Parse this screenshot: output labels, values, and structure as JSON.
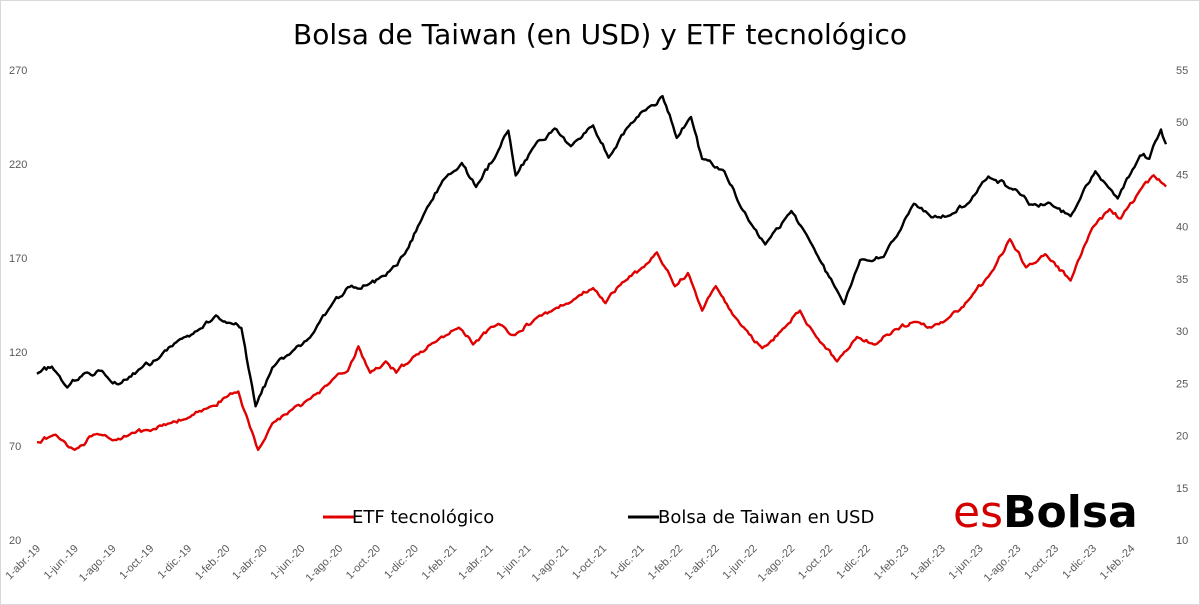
{
  "chart_data": {
    "type": "line",
    "title": "Bolsa de Taiwan (en USD) y ETF tecnológico",
    "x_tick_labels": [
      "1-abr.-19",
      "1-jun.-19",
      "1-ago.-19",
      "1-oct.-19",
      "1-dic.-19",
      "1-feb.-20",
      "1-abr.-20",
      "1-jun.-20",
      "1-ago.-20",
      "1-oct.-20",
      "1-dic.-20",
      "1-feb.-21",
      "1-abr.-21",
      "1-jun.-21",
      "1-ago.-21",
      "1-oct.-21",
      "1-dic.-21",
      "1-feb.-22",
      "1-abr.-22",
      "1-jun.-22",
      "1-ago.-22",
      "1-oct.-22",
      "1-dic.-22",
      "1-feb.-23",
      "1-abr.-23",
      "1-jun.-23",
      "1-ago.-23",
      "1-oct.-23",
      "1-dic.-23",
      "1-feb.-24"
    ],
    "x_range": [
      "2019-04-01",
      "2024-03-28"
    ],
    "y_left": {
      "range": [
        20,
        270
      ],
      "ticks": [
        "20",
        "70",
        "120",
        "170",
        "220",
        "270"
      ]
    },
    "y_right": {
      "range": [
        10,
        55
      ],
      "ticks": [
        "10",
        "15",
        "20",
        "25",
        "30",
        "35",
        "40",
        "45",
        "50",
        "55"
      ]
    },
    "grid": false,
    "legend_position": "bottom",
    "series": [
      {
        "name": "ETF tecnológico",
        "axis": "left",
        "color": "#e00000",
        "points": [
          [
            "2019-04-01",
            72
          ],
          [
            "2019-05-01",
            76
          ],
          [
            "2019-06-01",
            68
          ],
          [
            "2019-07-01",
            76
          ],
          [
            "2019-08-01",
            73
          ],
          [
            "2019-09-01",
            77
          ],
          [
            "2019-10-01",
            78
          ],
          [
            "2019-11-01",
            82
          ],
          [
            "2019-12-01",
            85
          ],
          [
            "2020-01-01",
            90
          ],
          [
            "2020-02-01",
            96
          ],
          [
            "2020-02-20",
            99
          ],
          [
            "2020-03-10",
            80
          ],
          [
            "2020-03-23",
            68
          ],
          [
            "2020-04-15",
            82
          ],
          [
            "2020-05-15",
            89
          ],
          [
            "2020-06-15",
            95
          ],
          [
            "2020-07-15",
            103
          ],
          [
            "2020-08-15",
            110
          ],
          [
            "2020-09-01",
            123
          ],
          [
            "2020-09-20",
            109
          ],
          [
            "2020-10-15",
            115
          ],
          [
            "2020-11-01",
            109
          ],
          [
            "2020-12-01",
            118
          ],
          [
            "2021-01-01",
            125
          ],
          [
            "2021-02-10",
            133
          ],
          [
            "2021-03-05",
            124
          ],
          [
            "2021-04-15",
            135
          ],
          [
            "2021-05-12",
            129
          ],
          [
            "2021-06-15",
            138
          ],
          [
            "2021-07-15",
            143
          ],
          [
            "2021-08-15",
            148
          ],
          [
            "2021-09-15",
            154
          ],
          [
            "2021-10-05",
            146
          ],
          [
            "2021-11-01",
            157
          ],
          [
            "2021-12-15",
            168
          ],
          [
            "2021-12-27",
            173
          ],
          [
            "2022-01-25",
            155
          ],
          [
            "2022-02-15",
            162
          ],
          [
            "2022-03-10",
            142
          ],
          [
            "2022-04-01",
            155
          ],
          [
            "2022-05-10",
            135
          ],
          [
            "2022-06-15",
            122
          ],
          [
            "2022-07-15",
            131
          ],
          [
            "2022-08-15",
            142
          ],
          [
            "2022-09-01",
            133
          ],
          [
            "2022-10-14",
            115
          ],
          [
            "2022-11-15",
            128
          ],
          [
            "2022-12-15",
            124
          ],
          [
            "2023-01-15",
            132
          ],
          [
            "2023-02-15",
            136
          ],
          [
            "2023-03-15",
            133
          ],
          [
            "2023-04-15",
            139
          ],
          [
            "2023-05-15",
            148
          ],
          [
            "2023-06-15",
            160
          ],
          [
            "2023-07-20",
            180
          ],
          [
            "2023-08-15",
            165
          ],
          [
            "2023-09-15",
            172
          ],
          [
            "2023-10-26",
            158
          ],
          [
            "2023-11-30",
            186
          ],
          [
            "2023-12-28",
            196
          ],
          [
            "2024-01-15",
            191
          ],
          [
            "2024-02-15",
            206
          ],
          [
            "2024-03-08",
            214
          ],
          [
            "2024-03-28",
            208
          ]
        ]
      },
      {
        "name": "Bolsa de Taiwan en USD",
        "axis": "right",
        "color": "#000000",
        "points": [
          [
            "2019-04-01",
            25.9
          ],
          [
            "2019-04-25",
            26.6
          ],
          [
            "2019-05-20",
            24.6
          ],
          [
            "2019-06-15",
            25.9
          ],
          [
            "2019-07-15",
            26.2
          ],
          [
            "2019-08-10",
            24.9
          ],
          [
            "2019-09-15",
            26.4
          ],
          [
            "2019-10-15",
            27.4
          ],
          [
            "2019-11-15",
            29.1
          ],
          [
            "2019-12-15",
            30.0
          ],
          [
            "2020-01-15",
            31.5
          ],
          [
            "2020-02-10",
            30.7
          ],
          [
            "2020-02-25",
            30.3
          ],
          [
            "2020-03-19",
            22.8
          ],
          [
            "2020-04-15",
            26.5
          ],
          [
            "2020-05-15",
            27.9
          ],
          [
            "2020-06-15",
            29.4
          ],
          [
            "2020-07-15",
            32.1
          ],
          [
            "2020-08-15",
            34.2
          ],
          [
            "2020-09-15",
            34.4
          ],
          [
            "2020-10-15",
            35.3
          ],
          [
            "2020-11-15",
            37.4
          ],
          [
            "2020-12-15",
            41.1
          ],
          [
            "2021-01-15",
            44.4
          ],
          [
            "2021-02-15",
            46.1
          ],
          [
            "2021-03-10",
            43.8
          ],
          [
            "2021-04-15",
            47.3
          ],
          [
            "2021-05-01",
            49.2
          ],
          [
            "2021-05-13",
            44.9
          ],
          [
            "2021-06-15",
            48.0
          ],
          [
            "2021-07-15",
            49.4
          ],
          [
            "2021-08-10",
            47.7
          ],
          [
            "2021-09-15",
            49.7
          ],
          [
            "2021-10-10",
            46.6
          ],
          [
            "2021-11-15",
            49.9
          ],
          [
            "2021-12-15",
            51.5
          ],
          [
            "2022-01-05",
            52.5
          ],
          [
            "2022-01-28",
            48.5
          ],
          [
            "2022-02-20",
            50.5
          ],
          [
            "2022-03-10",
            46.5
          ],
          [
            "2022-04-15",
            45.3
          ],
          [
            "2022-05-12",
            41.8
          ],
          [
            "2022-06-20",
            38.3
          ],
          [
            "2022-08-01",
            41.5
          ],
          [
            "2022-09-01",
            38.5
          ],
          [
            "2022-10-25",
            32.6
          ],
          [
            "2022-11-20",
            36.8
          ],
          [
            "2022-12-28",
            37.1
          ],
          [
            "2023-02-15",
            42.2
          ],
          [
            "2023-03-15",
            40.9
          ],
          [
            "2023-04-15",
            41.1
          ],
          [
            "2023-05-15",
            42.3
          ],
          [
            "2023-06-15",
            44.8
          ],
          [
            "2023-07-31",
            43.5
          ],
          [
            "2023-08-20",
            42.1
          ],
          [
            "2023-09-20",
            42.3
          ],
          [
            "2023-10-26",
            41.0
          ],
          [
            "2023-12-05",
            45.3
          ],
          [
            "2024-01-10",
            42.7
          ],
          [
            "2024-02-15",
            46.8
          ],
          [
            "2024-03-01",
            46.5
          ],
          [
            "2024-03-20",
            49.3
          ],
          [
            "2024-03-28",
            47.9
          ]
        ]
      }
    ]
  },
  "legend": {
    "etf_label": "ETF tecnológico",
    "taiwan_label": "Bolsa de Taiwan en USD"
  },
  "logo": {
    "es": "es",
    "bolsa": "Bolsa"
  }
}
